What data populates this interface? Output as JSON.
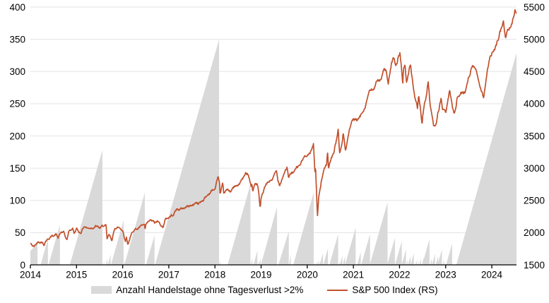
{
  "chart_data": {
    "type": "combo",
    "x_axis": {
      "range": [
        2014,
        2024.535
      ],
      "ticks": [
        2014,
        2015,
        2016,
        2017,
        2018,
        2019,
        2020,
        2021,
        2022,
        2023,
        2024
      ],
      "tick_labels": [
        "2014",
        "2015",
        "2016",
        "2017",
        "2018",
        "2019",
        "2020",
        "2021",
        "2022",
        "2023",
        "2024"
      ]
    },
    "y_left": {
      "range": [
        0,
        400
      ],
      "ticks": [
        0,
        50,
        100,
        150,
        200,
        250,
        300,
        350,
        400
      ],
      "tick_labels": [
        "0",
        "50",
        "100",
        "150",
        "200",
        "250",
        "300",
        "350",
        "400"
      ]
    },
    "y_right": {
      "range": [
        1500,
        5500
      ],
      "ticks": [
        1500,
        2000,
        2500,
        3000,
        3500,
        4000,
        4500,
        5000,
        5500
      ],
      "tick_labels": [
        "1500",
        "2000",
        "2500",
        "3000",
        "3500",
        "4000",
        "4500",
        "5000",
        "5500"
      ]
    },
    "grid_color": "#e3e3e3",
    "axis_color": "#000000",
    "series": [
      {
        "name": "Anzahl Handelstage ohne Tagesverlust >2%",
        "type": "area",
        "axis": "left",
        "color": "#d9d9d9",
        "sawtooth_triangles": [
          [
            2013.7,
            2014.155,
            33
          ],
          [
            2014.221,
            2014.38,
            40
          ],
          [
            2014.394,
            2014.64,
            62
          ],
          [
            2014.854,
            2015.56,
            178
          ],
          [
            2015.576,
            2015.6,
            6
          ],
          [
            2015.63,
            2015.67,
            10
          ],
          [
            2015.677,
            2015.74,
            16
          ],
          [
            2015.746,
            2016.02,
            69
          ],
          [
            2016.025,
            2016.045,
            5
          ],
          [
            2016.036,
            2016.48,
            112
          ],
          [
            2016.507,
            2016.69,
            46
          ],
          [
            2016.701,
            2018.09,
            350
          ],
          [
            2018.095,
            2018.12,
            6
          ],
          [
            2018.274,
            2018.77,
            125
          ],
          [
            2018.775,
            2018.815,
            10
          ],
          [
            2018.833,
            2018.92,
            22
          ],
          [
            2018.926,
            2018.95,
            6
          ],
          [
            2018.951,
            2018.99,
            10
          ],
          [
            2018.995,
            2019.345,
            90
          ],
          [
            2019.374,
            2019.6,
            52
          ],
          [
            2019.608,
            2019.645,
            16
          ],
          [
            2019.696,
            2020.14,
            112
          ],
          [
            2020.144,
            2020.16,
            4
          ],
          [
            2020.168,
            2020.18,
            3
          ],
          [
            2020.181,
            2020.2,
            5
          ],
          [
            2020.204,
            2020.22,
            4
          ],
          [
            2020.218,
            2020.25,
            8
          ],
          [
            2020.26,
            2020.28,
            5
          ],
          [
            2020.269,
            2020.34,
            18
          ],
          [
            2020.347,
            2020.45,
            26
          ],
          [
            2020.48,
            2020.67,
            48
          ],
          [
            2020.68,
            2020.7,
            5
          ],
          [
            2020.704,
            2020.76,
            14
          ],
          [
            2020.768,
            2020.82,
            13
          ],
          [
            2020.82,
            2021.05,
            58
          ],
          [
            2021.081,
            2021.16,
            20
          ],
          [
            2021.17,
            2021.36,
            48
          ],
          [
            2021.355,
            2021.74,
            97
          ],
          [
            2021.733,
            2021.9,
            42
          ],
          [
            2021.903,
            2022.05,
            37
          ],
          [
            2022.058,
            2022.09,
            8
          ],
          [
            2022.045,
            2022.14,
            24
          ],
          [
            2022.148,
            2022.18,
            8
          ],
          [
            2022.184,
            2022.24,
            14
          ],
          [
            2022.239,
            2022.31,
            18
          ],
          [
            2022.32,
            2022.34,
            5
          ],
          [
            2022.348,
            2022.38,
            8
          ],
          [
            2022.396,
            2022.42,
            6
          ],
          [
            2022.43,
            2022.47,
            10
          ],
          [
            2022.482,
            2022.53,
            12
          ],
          [
            2022.491,
            2022.65,
            40
          ],
          [
            2022.66,
            2022.7,
            10
          ],
          [
            2022.703,
            2022.77,
            17
          ],
          [
            2022.784,
            2022.84,
            14
          ],
          [
            2022.825,
            2022.92,
            24
          ],
          [
            2022.938,
            2022.97,
            8
          ],
          [
            2023.009,
            2023.14,
            33
          ],
          [
            2023.231,
            2024.6,
            345
          ]
        ]
      },
      {
        "name": "S&P 500 Index (RS)",
        "type": "line",
        "axis": "right",
        "color": "#c1512d",
        "points": [
          [
            2014.0,
            1832
          ],
          [
            2014.05,
            1790
          ],
          [
            2014.083,
            1783
          ],
          [
            2014.167,
            1859
          ],
          [
            2014.25,
            1872
          ],
          [
            2014.29,
            1815
          ],
          [
            2014.333,
            1884
          ],
          [
            2014.417,
            1924
          ],
          [
            2014.5,
            1960
          ],
          [
            2014.56,
            1978
          ],
          [
            2014.6,
            1915
          ],
          [
            2014.667,
            2003
          ],
          [
            2014.72,
            1995
          ],
          [
            2014.79,
            1875
          ],
          [
            2014.833,
            2018
          ],
          [
            2014.917,
            2068
          ],
          [
            2014.95,
            1990
          ],
          [
            2015.0,
            2059
          ],
          [
            2015.04,
            2020
          ],
          [
            2015.083,
            1995
          ],
          [
            2015.167,
            2105
          ],
          [
            2015.25,
            2068
          ],
          [
            2015.333,
            2086
          ],
          [
            2015.417,
            2107
          ],
          [
            2015.5,
            2063
          ],
          [
            2015.583,
            2104
          ],
          [
            2015.64,
            2096
          ],
          [
            2015.66,
            1880
          ],
          [
            2015.7,
            1948
          ],
          [
            2015.74,
            1915
          ],
          [
            2015.77,
            1882
          ],
          [
            2015.833,
            2079
          ],
          [
            2015.917,
            2080
          ],
          [
            2016.0,
            2044
          ],
          [
            2016.06,
            1880
          ],
          [
            2016.083,
            1940
          ],
          [
            2016.11,
            1829
          ],
          [
            2016.167,
            1932
          ],
          [
            2016.25,
            2060
          ],
          [
            2016.333,
            2065
          ],
          [
            2016.417,
            2097
          ],
          [
            2016.47,
            2113
          ],
          [
            2016.485,
            2010
          ],
          [
            2016.5,
            2099
          ],
          [
            2016.583,
            2174
          ],
          [
            2016.667,
            2171
          ],
          [
            2016.695,
            2128
          ],
          [
            2016.75,
            2168
          ],
          [
            2016.833,
            2126
          ],
          [
            2016.87,
            2085
          ],
          [
            2016.917,
            2199
          ],
          [
            2017.0,
            2239
          ],
          [
            2017.083,
            2279
          ],
          [
            2017.167,
            2364
          ],
          [
            2017.25,
            2363
          ],
          [
            2017.333,
            2384
          ],
          [
            2017.417,
            2412
          ],
          [
            2017.5,
            2423
          ],
          [
            2017.583,
            2470
          ],
          [
            2017.64,
            2438
          ],
          [
            2017.667,
            2472
          ],
          [
            2017.75,
            2519
          ],
          [
            2017.833,
            2575
          ],
          [
            2017.917,
            2648
          ],
          [
            2018.0,
            2674
          ],
          [
            2018.07,
            2873
          ],
          [
            2018.1,
            2762
          ],
          [
            2018.11,
            2581
          ],
          [
            2018.167,
            2714
          ],
          [
            2018.19,
            2588
          ],
          [
            2018.25,
            2641
          ],
          [
            2018.333,
            2648
          ],
          [
            2018.417,
            2705
          ],
          [
            2018.5,
            2718
          ],
          [
            2018.583,
            2816
          ],
          [
            2018.667,
            2902
          ],
          [
            2018.72,
            2931
          ],
          [
            2018.77,
            2785
          ],
          [
            2018.785,
            2728
          ],
          [
            2018.8,
            2768
          ],
          [
            2018.82,
            2656
          ],
          [
            2018.87,
            2760
          ],
          [
            2018.917,
            2760
          ],
          [
            2018.95,
            2600
          ],
          [
            2018.98,
            2351
          ],
          [
            2019.0,
            2507
          ],
          [
            2019.083,
            2704
          ],
          [
            2019.167,
            2784
          ],
          [
            2019.25,
            2834
          ],
          [
            2019.33,
            2946
          ],
          [
            2019.365,
            2811
          ],
          [
            2019.4,
            2752
          ],
          [
            2019.5,
            2942
          ],
          [
            2019.56,
            3026
          ],
          [
            2019.595,
            2845
          ],
          [
            2019.63,
            2889
          ],
          [
            2019.667,
            2926
          ],
          [
            2019.75,
            2977
          ],
          [
            2019.833,
            3038
          ],
          [
            2019.917,
            3141
          ],
          [
            2020.0,
            3231
          ],
          [
            2020.06,
            3226
          ],
          [
            2020.135,
            3386
          ],
          [
            2020.165,
            2954
          ],
          [
            2020.18,
            3024
          ],
          [
            2020.222,
            2237
          ],
          [
            2020.25,
            2585
          ],
          [
            2020.333,
            2912
          ],
          [
            2020.417,
            3044
          ],
          [
            2020.44,
            3232
          ],
          [
            2020.46,
            3002
          ],
          [
            2020.5,
            3100
          ],
          [
            2020.583,
            3271
          ],
          [
            2020.67,
            3580
          ],
          [
            2020.7,
            3237
          ],
          [
            2020.75,
            3363
          ],
          [
            2020.78,
            3534
          ],
          [
            2020.83,
            3270
          ],
          [
            2020.917,
            3622
          ],
          [
            2021.0,
            3756
          ],
          [
            2021.075,
            3714
          ],
          [
            2021.167,
            3811
          ],
          [
            2021.25,
            3973
          ],
          [
            2021.333,
            4181
          ],
          [
            2021.417,
            4204
          ],
          [
            2021.5,
            4298
          ],
          [
            2021.583,
            4395
          ],
          [
            2021.667,
            4523
          ],
          [
            2021.7,
            4537
          ],
          [
            2021.755,
            4300
          ],
          [
            2021.833,
            4605
          ],
          [
            2021.88,
            4697
          ],
          [
            2021.905,
            4594
          ],
          [
            2021.917,
            4567
          ],
          [
            2022.0,
            4766
          ],
          [
            2022.01,
            4797
          ],
          [
            2022.07,
            4327
          ],
          [
            2022.083,
            4516
          ],
          [
            2022.12,
            4590
          ],
          [
            2022.15,
            4326
          ],
          [
            2022.167,
            4374
          ],
          [
            2022.24,
            4631
          ],
          [
            2022.25,
            4530
          ],
          [
            2022.33,
            4132
          ],
          [
            2022.39,
            3930
          ],
          [
            2022.417,
            4132
          ],
          [
            2022.46,
            3900
          ],
          [
            2022.49,
            3667
          ],
          [
            2022.5,
            3785
          ],
          [
            2022.583,
            4130
          ],
          [
            2022.62,
            4305
          ],
          [
            2022.667,
            3955
          ],
          [
            2022.74,
            3586
          ],
          [
            2022.76,
            3612
          ],
          [
            2022.8,
            3700
          ],
          [
            2022.833,
            3872
          ],
          [
            2022.9,
            4080
          ],
          [
            2022.93,
            3930
          ],
          [
            2023.0,
            3840
          ],
          [
            2023.05,
            4060
          ],
          [
            2023.09,
            4180
          ],
          [
            2023.14,
            3970
          ],
          [
            2023.19,
            3855
          ],
          [
            2023.25,
            4109
          ],
          [
            2023.333,
            4169
          ],
          [
            2023.417,
            4180
          ],
          [
            2023.5,
            4450
          ],
          [
            2023.58,
            4589
          ],
          [
            2023.667,
            4508
          ],
          [
            2023.75,
            4288
          ],
          [
            2023.82,
            4117
          ],
          [
            2023.917,
            4568
          ],
          [
            2024.0,
            4770
          ],
          [
            2024.083,
            4846
          ],
          [
            2024.167,
            5096
          ],
          [
            2024.25,
            5254
          ],
          [
            2024.3,
            5035
          ],
          [
            2024.417,
            5278
          ],
          [
            2024.47,
            5354
          ],
          [
            2024.5,
            5460
          ],
          [
            2024.535,
            5470
          ]
        ]
      }
    ],
    "legend": {
      "area_label": "Anzahl Handelstage ohne Tagesverlust >2%",
      "line_label": "S&P 500 Index (RS)"
    }
  }
}
